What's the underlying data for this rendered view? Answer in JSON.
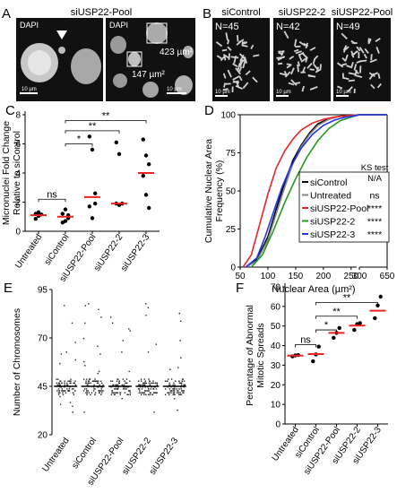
{
  "panels": {
    "A": {
      "letter": "A",
      "title": "siUSP22-Pool",
      "img1_label": "DAPI",
      "img2_label": "DAPI",
      "area_big": "423 µm²",
      "area_small": "147 µm²",
      "scale1": "10 µm",
      "scale2": "10 µm"
    },
    "B": {
      "letter": "B",
      "images": [
        {
          "title": "siControl",
          "n": "N=45",
          "scale": "10 µm"
        },
        {
          "title": "siUSP22-2",
          "n": "N=42",
          "scale": "10 µm"
        },
        {
          "title": "siUSP22-Pool",
          "n": "N=49",
          "scale": "10 µm"
        }
      ]
    },
    "C": {
      "letter": "C"
    },
    "D": {
      "letter": "D"
    },
    "E": {
      "letter": "E"
    },
    "F": {
      "letter": "F"
    }
  },
  "chart_data": [
    {
      "id": "C",
      "type": "scatter",
      "ylabel_lines": [
        "Micronuclei Fold Change",
        "Relative to siControl"
      ],
      "ylim": [
        0,
        8
      ],
      "yticks": [
        "0",
        "2",
        "4",
        "6",
        "8"
      ],
      "categories": [
        "Untreated",
        "siControl",
        "siUSP22-Pool",
        "siUSP22-2",
        "siUSP22-3"
      ],
      "points": [
        [
          0.85,
          1.3,
          1.15,
          1.2,
          1.05
        ],
        [
          1.2,
          1.5,
          0.9,
          0.6,
          0.7,
          1.1
        ],
        [
          6.5,
          5.6,
          2.6,
          1.7,
          0.9,
          1.9
        ],
        [
          6.1,
          5.3,
          1.9,
          1.9,
          1.8
        ],
        [
          6.3,
          5.2,
          4.6,
          3.8,
          2.5,
          1.6
        ]
      ],
      "means": [
        1.1,
        1.0,
        2.35,
        1.9,
        4.0
      ],
      "mean_color": "#ee2222",
      "significance": [
        {
          "from": 0,
          "to": 1,
          "label": "ns",
          "y": 2.2
        },
        {
          "from": 1,
          "to": 2,
          "label": "*",
          "y": 6.0
        },
        {
          "from": 1,
          "to": 3,
          "label": "**",
          "y": 6.9
        },
        {
          "from": 1,
          "to": 4,
          "label": "**",
          "y": 7.6
        }
      ]
    },
    {
      "id": "D",
      "type": "line",
      "ylabel_lines": [
        "Cumulative Nuclear Area",
        "Frequency (%)"
      ],
      "xlabel": "Nuclear Area (µm²)",
      "xticks_main": [
        "50",
        "100",
        "150",
        "200",
        "250"
      ],
      "xticks_break": [
        "300",
        "650"
      ],
      "xlim_main": [
        50,
        260
      ],
      "ylim": [
        0,
        100
      ],
      "yticks": [
        "0",
        "25",
        "50",
        "75",
        "100"
      ],
      "legend_header": [
        "KS test",
        "N/A"
      ],
      "series": [
        {
          "name": "siControl",
          "color": "#000000",
          "ks": "",
          "x": [
            60,
            80,
            100,
            115,
            130,
            145,
            160,
            175,
            190,
            210,
            230,
            250,
            300,
            650
          ],
          "y": [
            0,
            5,
            20,
            38,
            55,
            70,
            80,
            88,
            94,
            97.5,
            99,
            99.5,
            100,
            100
          ]
        },
        {
          "name": "Untreated",
          "color": "#888888",
          "ks": "ns",
          "x": [
            60,
            80,
            100,
            115,
            130,
            145,
            160,
            175,
            190,
            210,
            230,
            250,
            300,
            650
          ],
          "y": [
            0,
            4,
            18,
            35,
            52,
            68,
            79,
            87,
            93,
            97,
            99,
            99.5,
            100,
            100
          ]
        },
        {
          "name": "siUSP22-Pool",
          "color": "#ee2222",
          "ks": "****",
          "x": [
            55,
            70,
            85,
            100,
            115,
            130,
            145,
            160,
            180,
            200,
            220,
            240,
            300,
            650
          ],
          "y": [
            0,
            8,
            28,
            48,
            65,
            76,
            84,
            90,
            94.5,
            97,
            98.5,
            99.3,
            100,
            100
          ]
        },
        {
          "name": "siUSP22-2",
          "color": "#229922",
          "ks": "****",
          "x": [
            70,
            90,
            110,
            130,
            150,
            170,
            190,
            210,
            230,
            250,
            300,
            650
          ],
          "y": [
            0,
            8,
            24,
            42,
            58,
            72,
            83,
            91,
            96,
            98.5,
            100,
            100
          ]
        },
        {
          "name": "siUSP22-3",
          "color": "#2233ee",
          "ks": "****",
          "x": [
            60,
            80,
            95,
            110,
            125,
            140,
            160,
            180,
            200,
            220,
            240,
            260,
            300,
            650
          ],
          "y": [
            0,
            6,
            20,
            36,
            52,
            65,
            78,
            87,
            93,
            96.5,
            98.5,
            99.5,
            100,
            100
          ]
        }
      ]
    },
    {
      "id": "E",
      "type": "scatter",
      "ylabel": "Number of Chromosomes",
      "ylim": [
        20,
        95
      ],
      "yticks": [
        "20",
        "45",
        "70",
        "95"
      ],
      "categories": [
        "Untreated",
        "siControl",
        "siUSP22-Pool",
        "siUSP22-2",
        "siUSP22-3"
      ],
      "median": 45
    },
    {
      "id": "F",
      "type": "scatter",
      "ylabel_lines": [
        "Percentage of Abnormal",
        "Mitotic Spreads"
      ],
      "ylim": [
        0,
        70
      ],
      "yticks": [
        "0",
        "10",
        "20",
        "30",
        "40",
        "50",
        "60",
        "70"
      ],
      "categories": [
        "Untreated",
        "siControl",
        "siUSP22-Pool",
        "siUSP22-2",
        "siUSP22-3"
      ],
      "points": [
        [
          34.5,
          35,
          35.2
        ],
        [
          32,
          35.5,
          39.5
        ],
        [
          44,
          46.5,
          49
        ],
        [
          48,
          51,
          51.5
        ],
        [
          54,
          60.5,
          65
        ]
      ],
      "means": [
        34.9,
        35.7,
        46.5,
        50.2,
        57.8
      ],
      "mean_color": "#ee2222",
      "significance": [
        {
          "from": 0,
          "to": 1,
          "label": "ns",
          "y": 40.5
        },
        {
          "from": 1,
          "to": 2,
          "label": "*",
          "y": 48
        },
        {
          "from": 1,
          "to": 3,
          "label": "**",
          "y": 55
        },
        {
          "from": 1,
          "to": 4,
          "label": "**",
          "y": 62
        }
      ]
    }
  ]
}
